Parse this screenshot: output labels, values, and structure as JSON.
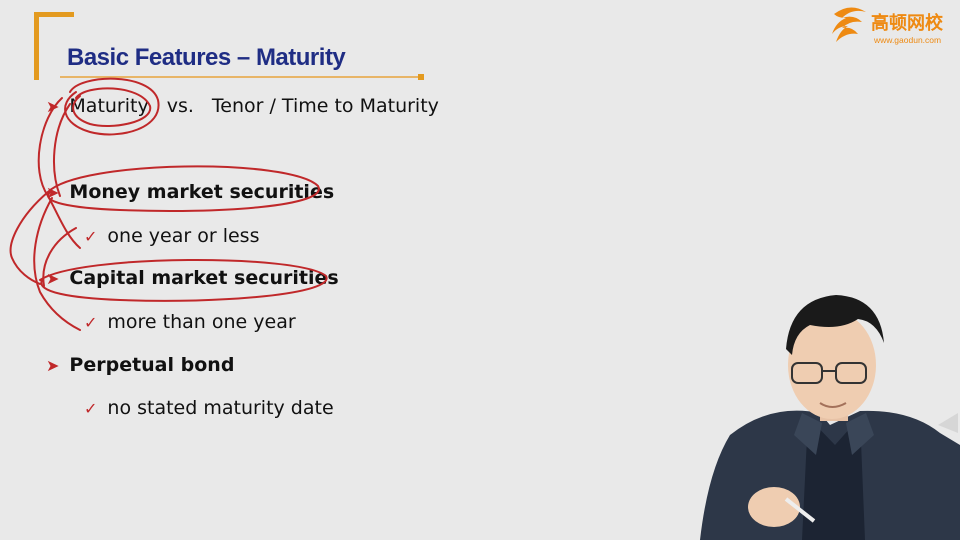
{
  "slide": {
    "title": "Basic Features – Maturity",
    "bullets": [
      {
        "marker": "arrow",
        "parts": [
          "Maturity",
          "vs.",
          "Tenor / Time to Maturity"
        ]
      },
      {
        "marker": "arrow",
        "text": "Money market securities"
      },
      {
        "marker": "check",
        "text": "one year or less"
      },
      {
        "marker": "arrow",
        "text": "Capital market securities"
      },
      {
        "marker": "check",
        "text": "more than one year"
      },
      {
        "marker": "arrow",
        "text": "Perpetual bond"
      },
      {
        "marker": "check",
        "text": "no stated maturity date"
      }
    ]
  },
  "logo": {
    "chinese_name": "高顿网校",
    "url": "www.gaodun.com"
  },
  "icons": {
    "arrow_bullet": "arrow-bullet-icon",
    "check_bullet": "check-bullet-icon",
    "logo_mark": "gaodun-logo-icon"
  },
  "colors": {
    "title": "#1f2d84",
    "accent_orange": "#e39a1f",
    "annotation_red": "#c0282a",
    "background": "#e9e9e9"
  }
}
